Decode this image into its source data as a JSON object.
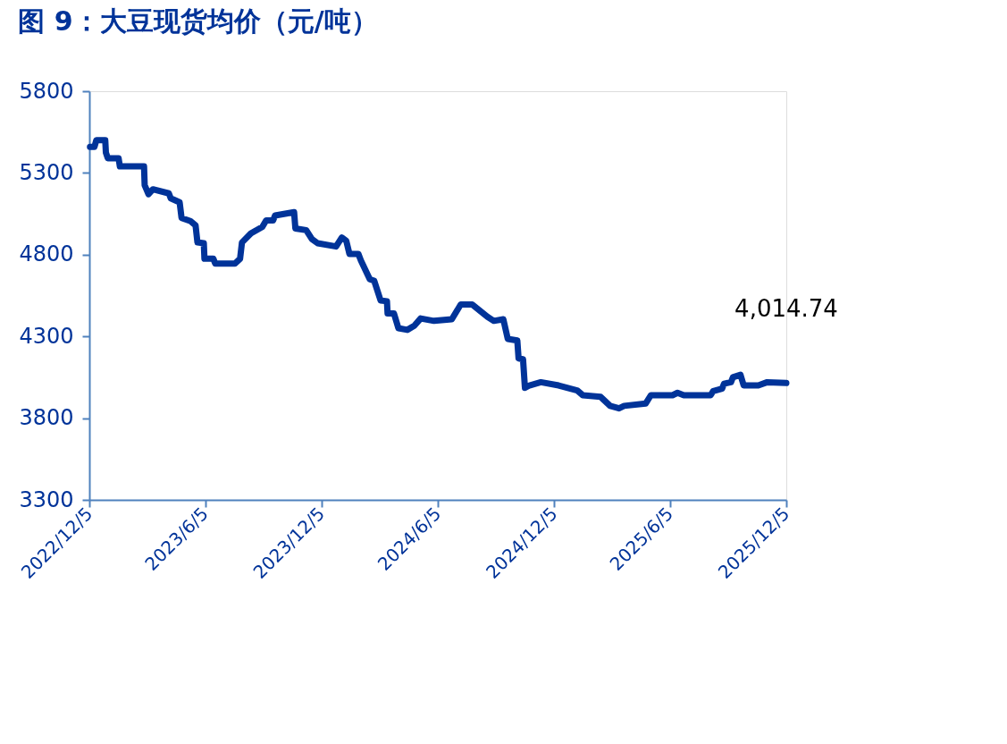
{
  "chart_data": {
    "type": "line",
    "title": "图 9：大豆现货均价（元/吨）",
    "x": [
      "2022-12-06",
      "2022-12-13",
      "2022-12-16",
      "2022-12-30",
      "2022-12-31",
      "2023-01-03",
      "2023-01-20",
      "2023-01-22",
      "2023-03-01",
      "2023-03-02",
      "2023-03-08",
      "2023-03-15",
      "2023-04-09",
      "2023-04-12",
      "2023-04-26",
      "2023-04-29",
      "2023-05-13",
      "2023-05-21",
      "2023-05-24",
      "2023-06-03",
      "2023-06-04",
      "2023-06-18",
      "2023-06-21",
      "2023-07-22",
      "2023-07-30",
      "2023-08-02",
      "2023-08-16",
      "2023-09-03",
      "2023-09-09",
      "2023-09-20",
      "2023-09-23",
      "2023-10-15",
      "2023-10-23",
      "2023-10-25",
      "2023-11-11",
      "2023-11-20",
      "2023-11-29",
      "2023-12-28",
      "2024-01-06",
      "2024-01-13",
      "2024-01-18",
      "2024-02-01",
      "2024-02-05",
      "2024-02-19",
      "2024-02-26",
      "2024-03-07",
      "2024-03-17",
      "2024-03-18",
      "2024-03-28",
      "2024-04-04",
      "2024-04-18",
      "2024-04-29",
      "2024-05-09",
      "2024-05-30",
      "2024-06-27",
      "2024-07-11",
      "2024-07-29",
      "2024-08-22",
      "2024-09-01",
      "2024-09-16",
      "2024-09-23",
      "2024-10-08",
      "2024-10-10",
      "2024-10-17",
      "2024-10-20",
      "2024-10-27",
      "2024-11-14",
      "2024-12-12",
      "2025-01-10",
      "2025-01-19",
      "2025-02-16",
      "2025-03-03",
      "2025-03-17",
      "2025-03-25",
      "2025-04-28",
      "2025-05-06",
      "2025-06-09",
      "2025-06-17",
      "2025-06-27",
      "2025-08-08",
      "2025-08-12",
      "2025-08-26",
      "2025-08-29",
      "2025-09-09",
      "2025-09-12",
      "2025-09-24",
      "2025-09-29",
      "2025-10-22",
      "2025-11-05",
      "2025-12-05"
    ],
    "series": [
      {
        "color": "#003399",
        "values": [
          5460,
          5460,
          5500,
          5500,
          5425,
          5390,
          5390,
          5340,
          5340,
          5225,
          5170,
          5200,
          5175,
          5145,
          5120,
          5025,
          5005,
          4980,
          4875,
          4870,
          4775,
          4775,
          4745,
          4745,
          4775,
          4875,
          4930,
          4970,
          5010,
          5010,
          5040,
          5055,
          5060,
          4960,
          4950,
          4895,
          4870,
          4850,
          4905,
          4885,
          4805,
          4805,
          4765,
          4650,
          4640,
          4520,
          4515,
          4440,
          4440,
          4350,
          4340,
          4365,
          4410,
          4395,
          4405,
          4495,
          4495,
          4420,
          4395,
          4405,
          4285,
          4275,
          4165,
          4160,
          3985,
          4000,
          4020,
          4000,
          3970,
          3940,
          3930,
          3875,
          3860,
          3875,
          3890,
          3940,
          3940,
          3955,
          3940,
          3940,
          3965,
          3980,
          4010,
          4020,
          4050,
          4065,
          4000,
          4000,
          4020,
          4014.74
        ]
      }
    ],
    "xlim": [
      "2022-12-05",
      "2025-12-05"
    ],
    "xticks": [
      {
        "value": "2022-12-05",
        "label": "2022/12/5"
      },
      {
        "value": "2023-06-05",
        "label": "2023/6/5"
      },
      {
        "value": "2023-12-05",
        "label": "2023/12/5"
      },
      {
        "value": "2024-06-05",
        "label": "2024/6/5"
      },
      {
        "value": "2024-12-05",
        "label": "2024/12/5"
      },
      {
        "value": "2025-06-05",
        "label": "2025/6/5"
      },
      {
        "value": "2025-12-05",
        "label": "2025/12/5"
      }
    ],
    "ylim": [
      3300,
      5800
    ],
    "yticks": [
      3300,
      3800,
      4300,
      4800,
      5300,
      5800
    ],
    "annotations": [
      {
        "text": "4,014.74",
        "x": "2025-12-05",
        "y": 4014.74
      }
    ],
    "grid": false,
    "line_style": "solid"
  }
}
